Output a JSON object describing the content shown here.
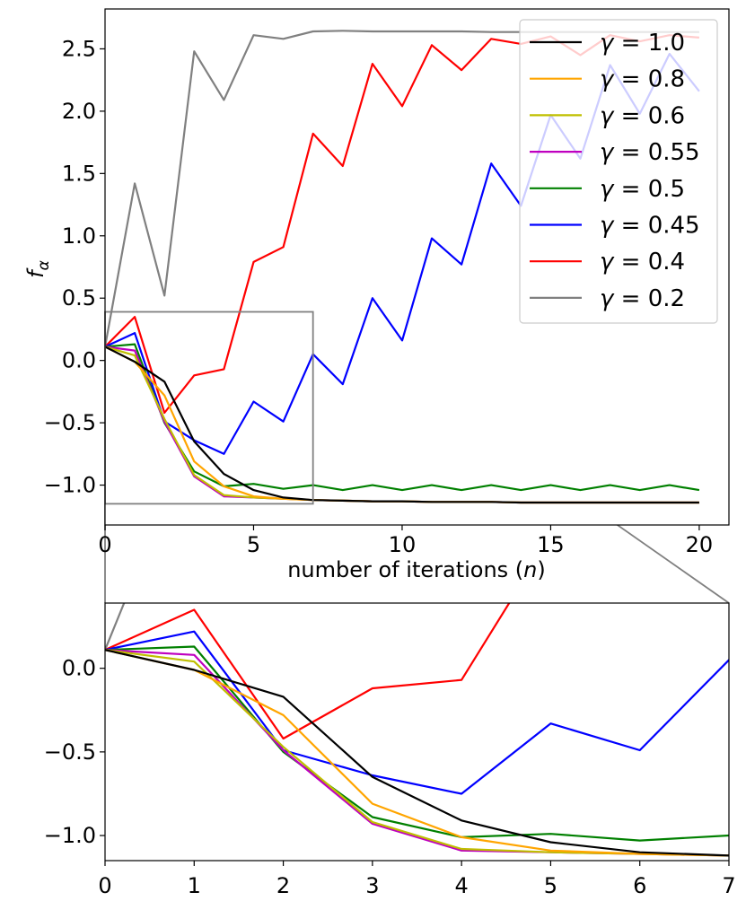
{
  "chart_data": [
    {
      "type": "line",
      "title": "",
      "xlabel": "number of iterations (n)",
      "ylabel": "f_α",
      "xlim": [
        0,
        21
      ],
      "ylim": [
        -1.32,
        2.82
      ],
      "xticks": [
        "0",
        "5",
        "10",
        "15",
        "20"
      ],
      "yticks": [
        "−1.0",
        "−0.5",
        "0.0",
        "0.5",
        "1.0",
        "1.5",
        "2.0",
        "2.5"
      ],
      "grid": false,
      "legend": "upper right",
      "inset_box": {
        "x": [
          0,
          7
        ],
        "y": [
          -1.15,
          0.39
        ]
      },
      "x": [
        0,
        1,
        2,
        3,
        4,
        5,
        6,
        7,
        8,
        9,
        10,
        11,
        12,
        13,
        14,
        15,
        16,
        17,
        18,
        19,
        20
      ],
      "series": [
        {
          "name": "γ = 1.0",
          "color": "#000000",
          "values": [
            0.11,
            -0.01,
            -0.17,
            -0.65,
            -0.91,
            -1.04,
            -1.1,
            -1.12,
            -1.125,
            -1.13,
            -1.13,
            -1.135,
            -1.135,
            -1.135,
            -1.14,
            -1.14,
            -1.14,
            -1.14,
            -1.14,
            -1.14,
            -1.14
          ]
        },
        {
          "name": "γ = 0.8",
          "color": "#ffa500",
          "values": [
            0.11,
            -0.01,
            -0.28,
            -0.81,
            -1.01,
            -1.09,
            -1.11,
            -1.12,
            -1.125,
            -1.13,
            -1.13,
            -1.135,
            -1.135,
            -1.135,
            -1.14,
            -1.14,
            -1.14,
            -1.14,
            -1.14,
            -1.14,
            -1.14
          ]
        },
        {
          "name": "γ = 0.6",
          "color": "#bfbf00",
          "values": [
            0.11,
            0.04,
            -0.47,
            -0.92,
            -1.08,
            -1.1,
            -1.11,
            -1.12,
            -1.125,
            -1.13,
            -1.13,
            -1.135,
            -1.135,
            -1.135,
            -1.14,
            -1.14,
            -1.14,
            -1.14,
            -1.14,
            -1.14,
            -1.14
          ]
        },
        {
          "name": "γ = 0.55",
          "color": "#bf00bf",
          "values": [
            0.11,
            0.08,
            -0.49,
            -0.93,
            -1.09,
            -1.1,
            -1.11,
            -1.12,
            -1.125,
            -1.13,
            -1.13,
            -1.135,
            -1.135,
            -1.135,
            -1.14,
            -1.14,
            -1.14,
            -1.14,
            -1.14,
            -1.14,
            -1.14
          ]
        },
        {
          "name": "γ = 0.5",
          "color": "#008000",
          "values": [
            0.11,
            0.13,
            -0.5,
            -0.89,
            -1.01,
            -0.99,
            -1.03,
            -1.0,
            -1.04,
            -1.0,
            -1.04,
            -1.0,
            -1.04,
            -1.0,
            -1.04,
            -1.0,
            -1.04,
            -1.0,
            -1.04,
            -1.0,
            -1.04
          ]
        },
        {
          "name": "γ = 0.45",
          "color": "#0000ff",
          "values": [
            0.11,
            0.22,
            -0.49,
            -0.64,
            -0.75,
            -0.33,
            -0.49,
            0.05,
            -0.19,
            0.5,
            0.16,
            0.98,
            0.77,
            1.58,
            1.24,
            1.97,
            1.62,
            2.37,
            1.98,
            2.46,
            2.16
          ]
        },
        {
          "name": "γ = 0.4",
          "color": "#ff0000",
          "values": [
            0.11,
            0.35,
            -0.42,
            -0.12,
            -0.07,
            0.79,
            0.91,
            1.82,
            1.56,
            2.38,
            2.04,
            2.53,
            2.33,
            2.58,
            2.54,
            2.6,
            2.45,
            2.61,
            2.56,
            2.61,
            2.59
          ]
        },
        {
          "name": "γ = 0.2",
          "color": "#808080",
          "values": [
            0.11,
            1.42,
            0.52,
            2.48,
            2.09,
            2.61,
            2.58,
            2.64,
            2.645,
            2.64,
            2.64,
            2.64,
            2.64,
            2.635,
            2.635,
            2.635,
            2.635,
            2.635,
            2.635,
            2.635,
            2.635
          ]
        }
      ]
    },
    {
      "type": "line",
      "title": "",
      "xlabel": "",
      "ylabel": "",
      "xlim": [
        0,
        7
      ],
      "ylim": [
        -1.15,
        0.39
      ],
      "xticks": [
        "0",
        "1",
        "2",
        "3",
        "4",
        "5",
        "6",
        "7"
      ],
      "yticks": [
        "−1.0",
        "−0.5",
        "0.0"
      ],
      "grid": false,
      "note_series": "same series as main chart, zoomed to x 0-7"
    }
  ]
}
